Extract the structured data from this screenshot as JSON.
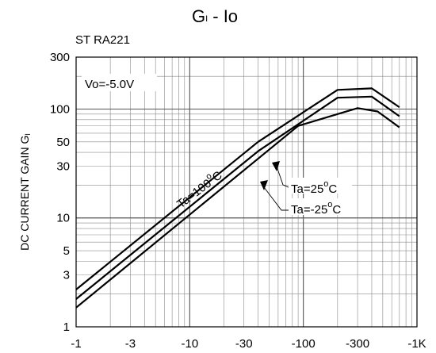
{
  "chart_data": {
    "type": "line",
    "title_main": "G",
    "title_sub": "I",
    "title_rest": " - Io",
    "device": "ST RA221",
    "condition": "Vo=-5.0V",
    "ylabel": "DC CURRENT GAIN G",
    "ylabel_sub": "I",
    "x_scale": "log",
    "y_scale": "log",
    "xlim": [
      -1,
      -1000
    ],
    "ylim": [
      1,
      300
    ],
    "grid": true,
    "x_ticks": [
      {
        "value": -1,
        "label": "-1"
      },
      {
        "value": -3,
        "label": "-3"
      },
      {
        "value": -10,
        "label": "-10"
      },
      {
        "value": -30,
        "label": "-30"
      },
      {
        "value": -100,
        "label": "-100"
      },
      {
        "value": -300,
        "label": "-300"
      },
      {
        "value": -1000,
        "label": "-1K"
      }
    ],
    "y_ticks": [
      {
        "value": 1,
        "label": "1"
      },
      {
        "value": 3,
        "label": "3"
      },
      {
        "value": 5,
        "label": "5"
      },
      {
        "value": 10,
        "label": "10"
      },
      {
        "value": 30,
        "label": "30"
      },
      {
        "value": 50,
        "label": "50"
      },
      {
        "value": 100,
        "label": "100"
      },
      {
        "value": 300,
        "label": "300"
      }
    ],
    "series": [
      {
        "name": "Ta=100°C",
        "label_main": "Ta=100",
        "label_sup": "o",
        "label_unit": "C",
        "x": [
          -1,
          -40,
          -200,
          -400,
          -700
        ],
        "y": [
          2.2,
          50,
          150,
          155,
          104
        ]
      },
      {
        "name": "Ta=25°C",
        "label_main": "Ta=25",
        "label_sup": "o",
        "label_unit": "C",
        "x": [
          -1,
          -40,
          -200,
          -400,
          -700
        ],
        "y": [
          1.8,
          41,
          127,
          130,
          86
        ]
      },
      {
        "name": "Ta=-25°C",
        "label_main": "Ta=-25",
        "label_sup": "o",
        "label_unit": "C",
        "x": [
          -1,
          -90,
          -200,
          -300,
          -450,
          -700
        ],
        "y": [
          1.5,
          70,
          90,
          102,
          95,
          68
        ]
      }
    ]
  }
}
